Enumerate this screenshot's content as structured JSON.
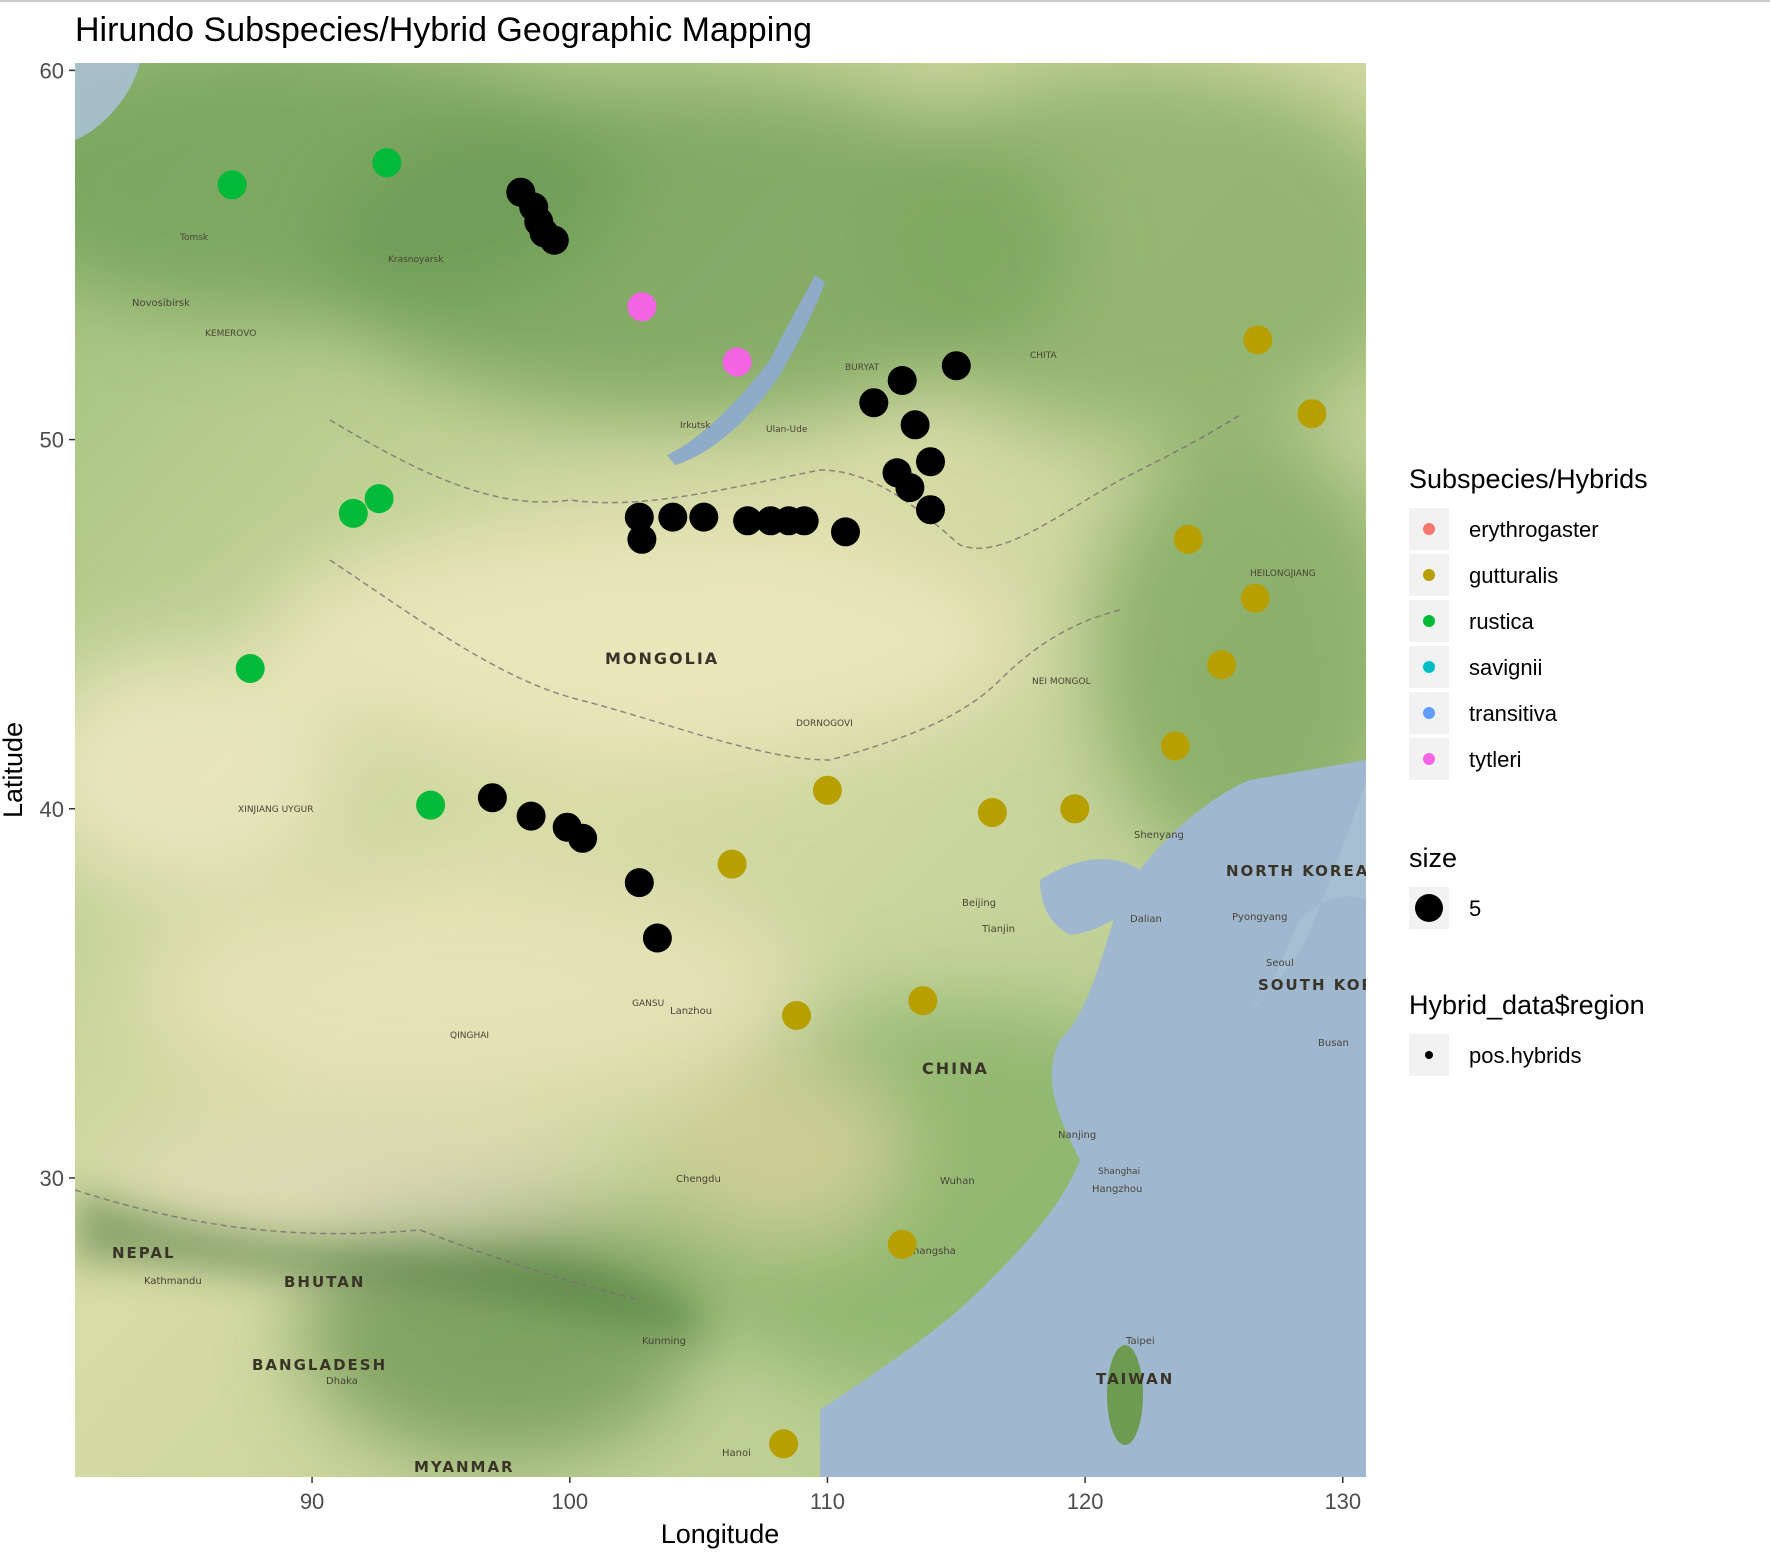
{
  "chart_data": {
    "type": "scatter",
    "title": "Hirundo Subspecies/Hybrid Geographic Mapping",
    "xlabel": "Longitude",
    "ylabel": "Latitude",
    "xlim": [
      80.8,
      130.9
    ],
    "ylim": [
      21.9,
      60.2
    ],
    "xticks": [
      90,
      100,
      110,
      120,
      130
    ],
    "yticks": [
      30,
      40,
      50,
      60
    ],
    "grid": false,
    "background": "terrain basemap",
    "legend": {
      "placement": "right",
      "color_title": "Subspecies/Hybrids",
      "color_entries": [
        {
          "label": "erythrogaster",
          "color": "#F8766D"
        },
        {
          "label": "gutturalis",
          "color": "#B79F00"
        },
        {
          "label": "rustica",
          "color": "#00BA38"
        },
        {
          "label": "savignii",
          "color": "#00BFC4"
        },
        {
          "label": "transitiva",
          "color": "#619CFF"
        },
        {
          "label": "tytleri",
          "color": "#F564E3"
        }
      ],
      "size_title": "size",
      "size_entries": [
        {
          "label": "5"
        }
      ],
      "region_title": "Hybrid_data$region",
      "region_entries": [
        {
          "label": "pos.hybrids",
          "color": "#000000"
        }
      ]
    },
    "series": [
      {
        "name": "rustica",
        "color": "#00BA38",
        "points": [
          [
            86.9,
            56.9
          ],
          [
            92.9,
            57.5
          ],
          [
            91.6,
            48.0
          ],
          [
            92.6,
            48.4
          ],
          [
            87.6,
            43.8
          ],
          [
            94.6,
            40.1
          ]
        ]
      },
      {
        "name": "tytleri",
        "color": "#F564E3",
        "points": [
          [
            102.8,
            53.6
          ],
          [
            106.5,
            52.1
          ]
        ]
      },
      {
        "name": "gutturalis",
        "color": "#B79F00",
        "points": [
          [
            126.7,
            52.7
          ],
          [
            128.8,
            50.7
          ],
          [
            124.0,
            47.3
          ],
          [
            126.6,
            45.7
          ],
          [
            125.3,
            43.9
          ],
          [
            123.5,
            41.7
          ],
          [
            110.0,
            40.5
          ],
          [
            116.4,
            39.9
          ],
          [
            119.6,
            40.0
          ],
          [
            106.3,
            38.5
          ],
          [
            108.8,
            34.4
          ],
          [
            113.7,
            34.8
          ],
          [
            112.9,
            28.2
          ],
          [
            108.3,
            22.8
          ]
        ]
      },
      {
        "name": "pos.hybrids",
        "color": "#000000",
        "points": [
          [
            98.1,
            56.7
          ],
          [
            98.6,
            56.3
          ],
          [
            98.8,
            55.9
          ],
          [
            99.0,
            55.6
          ],
          [
            99.4,
            55.4
          ],
          [
            115.0,
            52.0
          ],
          [
            112.9,
            51.6
          ],
          [
            111.8,
            51.0
          ],
          [
            113.4,
            50.4
          ],
          [
            114.0,
            49.4
          ],
          [
            112.7,
            49.1
          ],
          [
            113.2,
            48.7
          ],
          [
            114.0,
            48.1
          ],
          [
            102.7,
            47.9
          ],
          [
            102.8,
            47.3
          ],
          [
            104.0,
            47.9
          ],
          [
            105.2,
            47.9
          ],
          [
            106.9,
            47.8
          ],
          [
            107.8,
            47.8
          ],
          [
            108.5,
            47.8
          ],
          [
            109.1,
            47.8
          ],
          [
            110.7,
            47.5
          ],
          [
            97.0,
            40.3
          ],
          [
            98.5,
            39.8
          ],
          [
            99.9,
            39.5
          ],
          [
            100.5,
            39.2
          ],
          [
            102.7,
            38.0
          ],
          [
            103.4,
            36.5
          ]
        ]
      }
    ],
    "map_labels": [
      "MONGOLIA",
      "CHINA",
      "NORTH KOREA",
      "SOUTH KOREA",
      "NEPAL",
      "BHUTAN",
      "BANGLADESH",
      "MYANMAR",
      "TAIWAN",
      "KEMEROVO",
      "BURYAT",
      "CHITA",
      "DORNOGOVI",
      "NEI MONGOL",
      "XINJIANG UYGUR",
      "QINGHAI",
      "GANSU",
      "HEILONGJIANG",
      "Novosibirsk",
      "Irkutsk",
      "Ulan-Ude",
      "Lanzhou",
      "Chengdu",
      "Beijing",
      "Tianjin",
      "Shenyang",
      "Dalian",
      "Nanjing",
      "Shanghai",
      "Hangzhou",
      "Wuhan",
      "Changsha",
      "Kunming",
      "Kathmandu",
      "Dhaka",
      "Busan",
      "Seoul",
      "Pyongyang",
      "Hanoi",
      "Taipei",
      "Krasnoyarsk",
      "Tomsk"
    ]
  }
}
